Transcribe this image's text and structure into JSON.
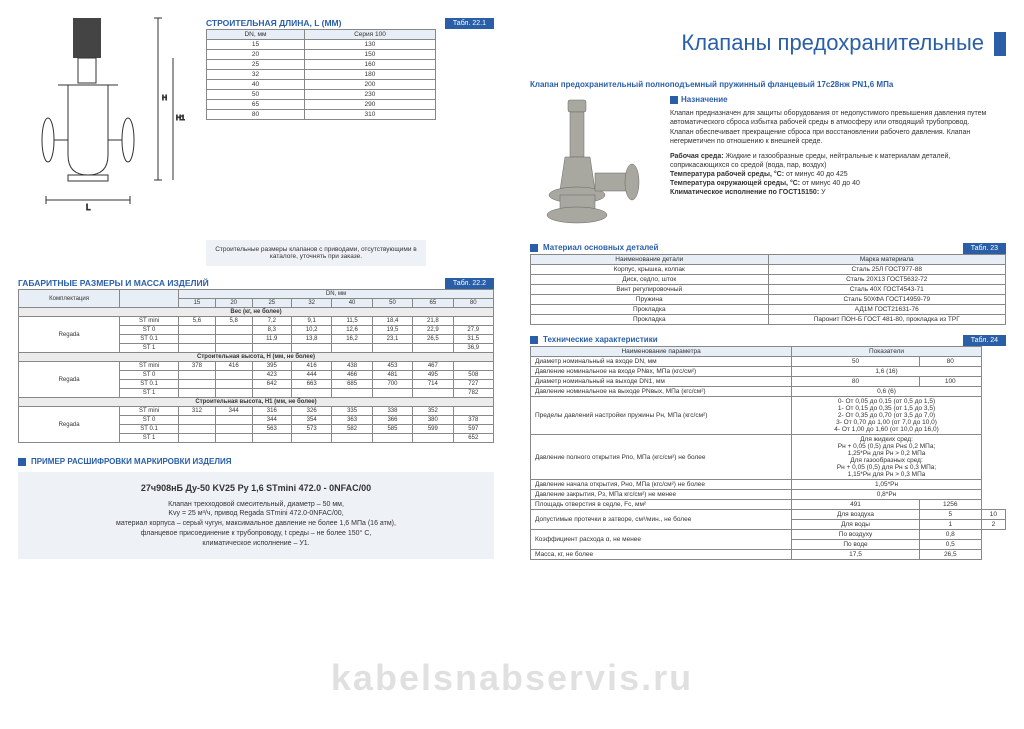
{
  "pageTitle": "Клапаны предохранительные",
  "left": {
    "lenHeader": "СТРОИТЕЛЬНАЯ ДЛИНА, L (мм)",
    "lenTab": "Табл. 22.1",
    "lenCols": [
      "DN, мм",
      "Серия 100"
    ],
    "lenRows": [
      [
        "15",
        "130"
      ],
      [
        "20",
        "150"
      ],
      [
        "25",
        "160"
      ],
      [
        "32",
        "180"
      ],
      [
        "40",
        "200"
      ],
      [
        "50",
        "230"
      ],
      [
        "65",
        "290"
      ],
      [
        "80",
        "310"
      ]
    ],
    "noteBox": "Строительные размеры клапанов с приводами, отсутствующими в каталоге, уточнять при заказе.",
    "dimHeader": "ГАБАРИТНЫЕ РАЗМЕРЫ И МАССА ИЗДЕЛИЙ",
    "dimTab": "Табл. 22.2",
    "dimTopHeader": "DN, мм",
    "dimCols": [
      "Комплектация",
      "",
      "15",
      "20",
      "25",
      "32",
      "40",
      "50",
      "65",
      "80"
    ],
    "weightHeader": "Вес (кг, не более)",
    "weightRows": [
      [
        "Regada",
        "ST mini",
        "5,6",
        "5,8",
        "7,2",
        "9,1",
        "11,5",
        "18,4",
        "21,8",
        ""
      ],
      [
        "",
        "ST 0",
        "",
        "",
        "8,3",
        "10,2",
        "12,6",
        "19,5",
        "22,9",
        "27,9"
      ],
      [
        "",
        "ST 0.1",
        "",
        "",
        "11,9",
        "13,8",
        "16,2",
        "23,1",
        "26,5",
        "31,5"
      ],
      [
        "",
        "ST 1",
        "",
        "",
        "",
        "",
        "",
        "",
        "",
        "36,9"
      ]
    ],
    "hHeader": "Строительная высота, Н (мм, не более)",
    "hRows": [
      [
        "Regada",
        "ST mini",
        "378",
        "416",
        "395",
        "416",
        "438",
        "453",
        "467",
        ""
      ],
      [
        "",
        "ST 0",
        "",
        "",
        "423",
        "444",
        "466",
        "481",
        "495",
        "508"
      ],
      [
        "",
        "ST 0.1",
        "",
        "",
        "642",
        "663",
        "685",
        "700",
        "714",
        "727"
      ],
      [
        "",
        "ST 1",
        "",
        "",
        "",
        "",
        "",
        "",
        "",
        "782"
      ]
    ],
    "h1Header": "Строительная высота, Н1 (мм, не более)",
    "h1Rows": [
      [
        "Regada",
        "ST mini",
        "312",
        "344",
        "316",
        "326",
        "335",
        "338",
        "352",
        ""
      ],
      [
        "",
        "ST 0",
        "",
        "",
        "344",
        "354",
        "363",
        "366",
        "380",
        "378"
      ],
      [
        "",
        "ST 0.1",
        "",
        "",
        "563",
        "573",
        "582",
        "585",
        "599",
        "597"
      ],
      [
        "",
        "ST 1",
        "",
        "",
        "",
        "",
        "",
        "",
        "",
        "652"
      ]
    ],
    "exampleHeader": "ПРИМЕР РАСШИФРОВКИ МАРКИРОВКИ ИЗДЕЛИЯ",
    "exampleTitle": "27ч908нБ Ду-50 KV25 Ру 1,6 STmini 472.0 - 0NFAC/00",
    "exampleLines": [
      "Клапан трехходовой смесительный, диаметр – 50 мм,",
      "Kvу = 25 м³/ч, привод Regada STmini 472.0-0NFAC/00,",
      "материал корпуса – серый чугун, максимальное давление не более 1,6 МПа (16 атм),",
      "фланцевое присоединение к трубопроводу, t среды – не более 150° С,",
      "климатическое исполнение – У1."
    ]
  },
  "right": {
    "productTitle": "Клапан предохранительный полноподъемный пружинный фланцевый 17с28нж PN1,6 МПа",
    "purposeLabel": "Назначение",
    "purposeText": "Клапан предназначен для защиты оборудования от недопустимого превышения давления путем автоматического сброса избытка рабочей среды в атмосферу или отводящий трубопровод. Клапан обеспечивает прекращение сброса при восстановлении рабочего давления. Клапан негерметичен по отношению к внешней среде.",
    "envLabel": "Рабочая среда:",
    "envText": "Жидкие и газообразные среды, нейтральные к материалам деталей, соприкасающихся со средой (вода, пар, воздух)",
    "tempWorkLabel": "Температура рабочей среды, °С:",
    "tempWork": "от минус 40 до 425",
    "tempAmbLabel": "Температура окружающей среды, °С:",
    "tempAmb": "от минус 40 до 40",
    "climLabel": "Климатическое исполнение по ГОСТ15150:",
    "clim": "У",
    "matHeader": "Материал основных деталей",
    "matTab": "Табл. 23",
    "matCols": [
      "Наименование детали",
      "Марка материала"
    ],
    "matRows": [
      [
        "Корпус, крышка, колпак",
        "Сталь 25Л   ГОСТ977-88"
      ],
      [
        "Диск, седло, шток",
        "Сталь 20Х13  ГОСТ5632-72"
      ],
      [
        "Винт регулировочный",
        "Сталь 40Х ГОСТ4543-71"
      ],
      [
        "Пружина",
        "Сталь 50ХФА ГОСТ14959-79"
      ],
      [
        "Прокладка",
        "АД1М ГОСТ21631-76"
      ],
      [
        "Прокладка",
        "Паронит ПОН-Б ГОСТ 481-80, прокладка из ТРГ"
      ]
    ],
    "techHeader": "Технические характеристики",
    "techTab": "Табл. 24",
    "techCols": [
      "Наименование параметра",
      "Показатели"
    ],
    "techRows": [
      {
        "name": "Диаметр номинальный на входе DN, мм",
        "vals": [
          "50",
          "80"
        ],
        "span": [
          1,
          1
        ]
      },
      {
        "name": "Давление номинальное на входе PNвх, МПа (кгс/см²)",
        "vals": [
          "1,6 (16)"
        ],
        "span": [
          2
        ]
      },
      {
        "name": "Диаметр номинальный на выходе DN1, мм",
        "vals": [
          "80",
          "100"
        ],
        "span": [
          1,
          1
        ]
      },
      {
        "name": "Давление номинальное на выходе PNвых, МПа (кгс/см²)",
        "vals": [
          "0,6 (6)"
        ],
        "span": [
          2
        ]
      },
      {
        "name": "Пределы давлений настройки пружины  Рн, МПа (кгс/см²)",
        "vals": [
          "0- От 0,05 до 0,15 (от 0,5 до 1,5)\n1- От 0,15 до 0,35 (от 1,5 до 3,5)\n2- От 0,35 до 0,70 (от 3,5 до 7,0)\n3- От 0,70 до 1,00 (от 7,0 до 10,0)\n4- От 1,00 до 1,60 (от 10,0 до 16,0)"
        ],
        "span": [
          2
        ]
      },
      {
        "name": "Давление полного открытия Рпо, МПа (кгс/см²)  не более",
        "vals": [
          "Для жидких сред:\nРн + 0,05 (0,5) для Рн≤ 0,2 МПа;\n1,25*Рн для Рн > 0,2 МПа\nДля газообразных сред:\nРн + 0,05 (0,5) для Рн ≤ 0,3 МПа;\n1,15*Рн для Рн > 0,3 МПа"
        ],
        "span": [
          2
        ]
      },
      {
        "name": "Давление начала открытия, Рно, МПа (кгс/см²) не более",
        "vals": [
          "1,05*Рн"
        ],
        "span": [
          2
        ]
      },
      {
        "name": "Давление закрытия, Рз, МПа  кгс/см²)  не менее",
        "vals": [
          "0,8*Рн"
        ],
        "span": [
          2
        ]
      },
      {
        "name": "Площадь отверстия в седле, Fc, мм²",
        "vals": [
          "491",
          "1256"
        ],
        "span": [
          1,
          1
        ]
      },
      {
        "name": "Допустимые протечки в затворе, см³/мин., не более",
        "sub": [
          [
            "Для воздуха",
            "5",
            "10"
          ],
          [
            "Для воды",
            "1",
            "2"
          ]
        ]
      },
      {
        "name": "Коэффициент расхода α, не менее",
        "sub": [
          [
            "По воздуху",
            "0,8",
            ""
          ],
          [
            "По воде",
            "0,5",
            ""
          ]
        ]
      },
      {
        "name": "Масса, кг, не более",
        "vals": [
          "17,5",
          "26,5"
        ],
        "span": [
          1,
          1
        ]
      }
    ]
  },
  "watermark": "kabelsnabservis.ru"
}
